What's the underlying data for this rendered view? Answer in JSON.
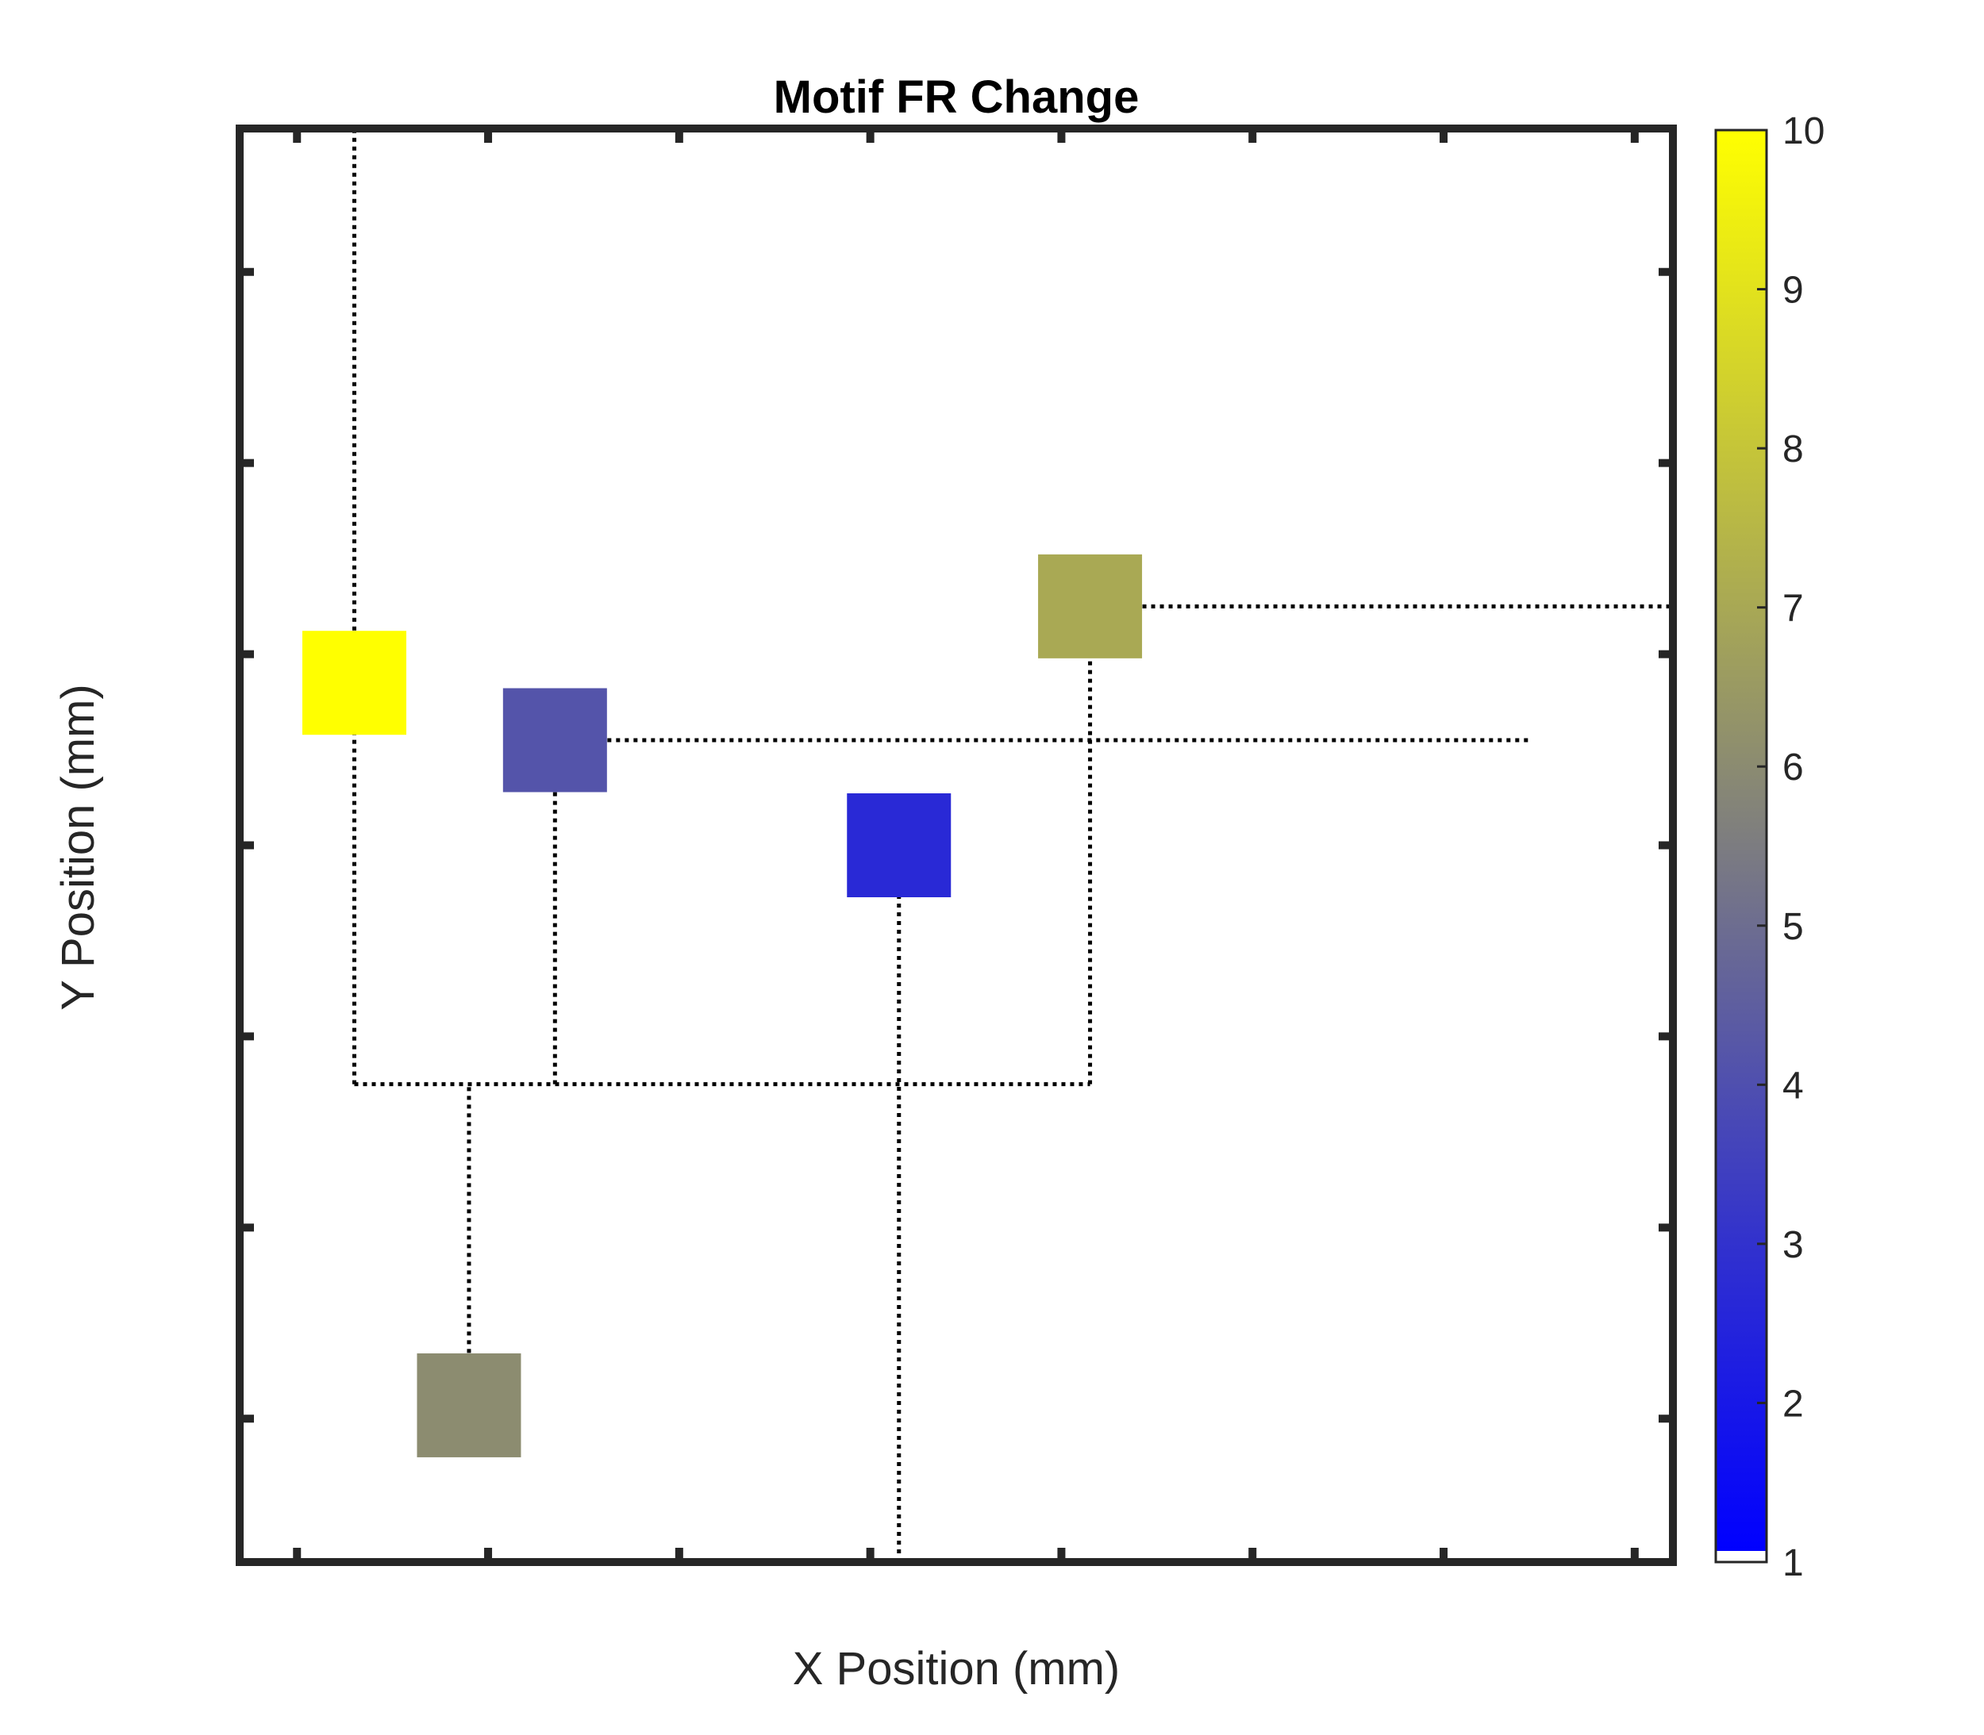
{
  "chart_data": {
    "type": "heatmap",
    "title": "Motif FR Change",
    "xlabel": "X Position (mm)",
    "ylabel": "Y Position (mm)",
    "xlim": [
      0,
      7.5
    ],
    "ylim": [
      0,
      7.5
    ],
    "x_ticks": [
      0.3,
      1.3,
      2.3,
      3.3,
      4.3,
      5.3,
      6.3,
      7.3
    ],
    "y_ticks": [
      0.75,
      1.75,
      2.75,
      3.75,
      4.75,
      5.75,
      6.75
    ],
    "tick_labels_shown": false,
    "grid": false,
    "points": [
      {
        "x": 0.6,
        "y": 4.6,
        "value": 10
      },
      {
        "x": 1.65,
        "y": 4.3,
        "value": 4.1
      },
      {
        "x": 3.45,
        "y": 3.75,
        "value": 2.6
      },
      {
        "x": 4.45,
        "y": 5.0,
        "value": 7.0
      },
      {
        "x": 1.2,
        "y": 0.82,
        "value": 6.0
      }
    ],
    "connections": [
      {
        "type": "vertical",
        "x": 0.6,
        "y": [
          4.6,
          7.5
        ]
      },
      {
        "type": "vertical",
        "x": 0.6,
        "y": [
          2.5,
          4.6
        ]
      },
      {
        "type": "vertical",
        "x": 1.65,
        "y": [
          2.5,
          4.3
        ]
      },
      {
        "type": "vertical",
        "x": 4.45,
        "y": [
          2.5,
          5.0
        ]
      },
      {
        "type": "vertical",
        "x": 1.2,
        "y": [
          0.82,
          2.5
        ]
      },
      {
        "type": "vertical",
        "x": 3.45,
        "y": [
          0,
          3.75
        ]
      },
      {
        "type": "horizontal",
        "y": 2.5,
        "x": [
          0.6,
          4.45
        ]
      },
      {
        "type": "horizontal",
        "y": 4.3,
        "x": [
          1.65,
          6.75
        ]
      },
      {
        "type": "horizontal",
        "y": 5.0,
        "x": [
          4.45,
          7.5
        ]
      }
    ],
    "colorbar": {
      "min": 1,
      "max": 10,
      "ticks": [
        1,
        2,
        3,
        4,
        5,
        6,
        7,
        8,
        9,
        10
      ],
      "tick_labels": [
        "1",
        "2",
        "3",
        "4",
        "5",
        "6",
        "7",
        "8",
        "9",
        "10"
      ],
      "colormap": [
        {
          "value": 1,
          "color": "#0000ff"
        },
        {
          "value": 3,
          "color": "#3333cc"
        },
        {
          "value": 6,
          "color": "#8c8c70"
        },
        {
          "value": 10,
          "color": "#ffff00"
        }
      ],
      "below_min_color": "#ffffff"
    },
    "colors": {
      "axes": "#262626",
      "connection": "#000000"
    }
  }
}
